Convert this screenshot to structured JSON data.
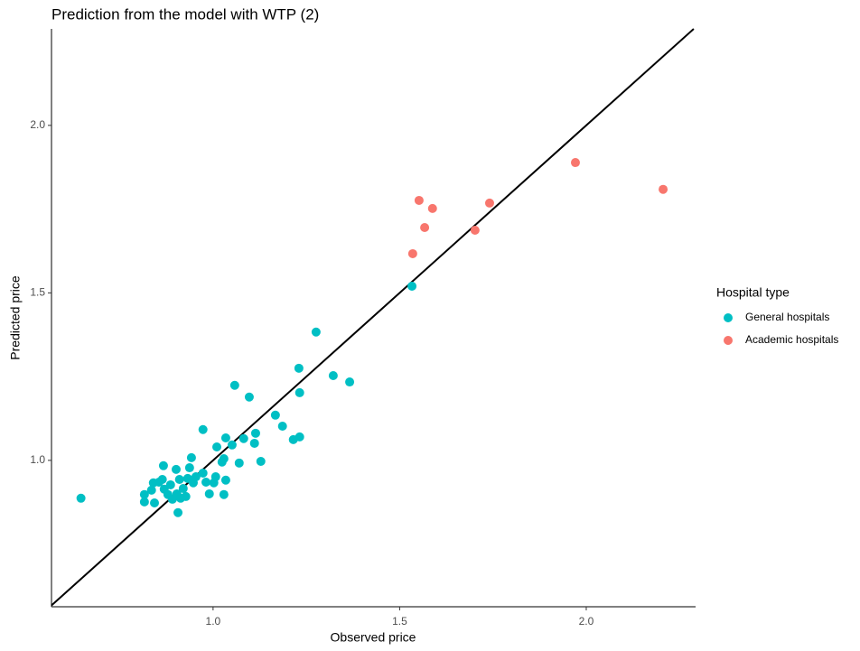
{
  "chart_data": {
    "type": "scatter",
    "title": "Prediction from the model with WTP (2)",
    "x_label": "Observed price",
    "y_label": "Predicted price",
    "legend_title": "Hospital type",
    "xlim": [
      0.567,
      2.293
    ],
    "ylim": [
      0.563,
      2.288
    ],
    "xticks": [
      {
        "value": 1.0,
        "label": "1.0"
      },
      {
        "value": 1.5,
        "label": "1.5"
      },
      {
        "value": 2.0,
        "label": "2.0"
      }
    ],
    "yticks": [
      {
        "value": 1.0,
        "label": "1.0"
      },
      {
        "value": 1.5,
        "label": "1.5"
      },
      {
        "value": 2.0,
        "label": "2.0"
      }
    ],
    "identity_line": true,
    "grid": false,
    "series": [
      {
        "name": "General hospitals",
        "color": "#00BFC4",
        "x": [
          0.646,
          1.276,
          1.533,
          1.322,
          1.366,
          1.23,
          1.232,
          1.167,
          1.186,
          1.215,
          1.232,
          1.058,
          1.097,
          1.114,
          1.128,
          1.082,
          1.111,
          1.07,
          1.034,
          1.051,
          1.01,
          1.029,
          1.024,
          0.973,
          0.942,
          0.973,
          0.981,
          1.002,
          1.007,
          0.99,
          1.029,
          1.034,
          0.937,
          0.932,
          0.92,
          0.91,
          0.903,
          0.901,
          0.913,
          0.906,
          0.927,
          0.947,
          0.954,
          0.867,
          0.864,
          0.855,
          0.84,
          0.835,
          0.869,
          0.879,
          0.816,
          0.816,
          0.843,
          0.886,
          0.891
        ],
        "values": [
          0.887,
          1.383,
          1.52,
          1.253,
          1.234,
          1.275,
          1.202,
          1.135,
          1.102,
          1.062,
          1.07,
          1.224,
          1.189,
          1.081,
          0.997,
          1.065,
          1.051,
          0.992,
          1.067,
          1.046,
          1.04,
          1.005,
          0.995,
          1.092,
          1.008,
          0.962,
          0.935,
          0.933,
          0.951,
          0.9,
          0.898,
          0.941,
          0.978,
          0.946,
          0.916,
          0.943,
          0.9,
          0.973,
          0.887,
          0.844,
          0.892,
          0.933,
          0.951,
          0.984,
          0.943,
          0.935,
          0.933,
          0.911,
          0.914,
          0.898,
          0.898,
          0.876,
          0.873,
          0.927,
          0.884
        ]
      },
      {
        "name": "Academic hospitals",
        "color": "#F8766D",
        "x": [
          1.535,
          1.552,
          1.567,
          1.588,
          1.702,
          1.741,
          1.971,
          2.206
        ],
        "values": [
          1.617,
          1.776,
          1.695,
          1.752,
          1.687,
          1.768,
          1.889,
          1.809
        ]
      }
    ]
  }
}
